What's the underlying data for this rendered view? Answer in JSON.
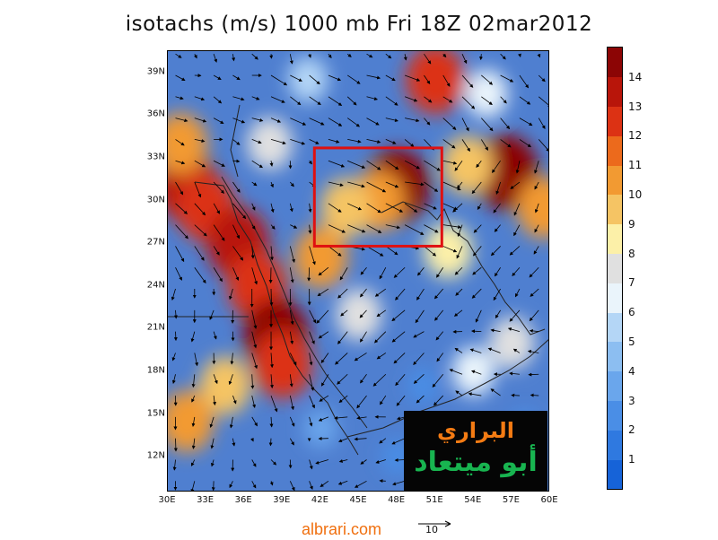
{
  "title": "isotachs (m/s) 1000 mb Fri 18Z 02mar2012",
  "footer": {
    "url": "albrari.com",
    "reference_vector_label": "10"
  },
  "logo": {
    "line1": "البراري",
    "line2": "أبو ميتعاد"
  },
  "map": {
    "lon_range": [
      30,
      60
    ],
    "lat_range": [
      9.5,
      40.5
    ],
    "x_ticks": [
      "30E",
      "33E",
      "36E",
      "39E",
      "42E",
      "45E",
      "48E",
      "51E",
      "54E",
      "57E",
      "60E"
    ],
    "y_ticks": [
      "12N",
      "15N",
      "18N",
      "21N",
      "24N",
      "27N",
      "30N",
      "33N",
      "36N",
      "39N"
    ],
    "background_color": "#4f7fd0",
    "highlight_box": {
      "lon": [
        41.5,
        51.5
      ],
      "lat": [
        26.8,
        33.7
      ],
      "color": "#e01010"
    },
    "wind_speed_blobs": [
      {
        "lon": 31.5,
        "lat": 31.0,
        "speed": 13
      },
      {
        "lon": 33.0,
        "lat": 29.5,
        "speed": 12
      },
      {
        "lon": 31.0,
        "lat": 34.0,
        "speed": 10
      },
      {
        "lon": 35.5,
        "lat": 27.0,
        "speed": 13
      },
      {
        "lon": 37.0,
        "lat": 24.0,
        "speed": 12
      },
      {
        "lon": 38.5,
        "lat": 20.5,
        "speed": 14
      },
      {
        "lon": 39.0,
        "lat": 18.5,
        "speed": 12
      },
      {
        "lon": 48.0,
        "lat": 31.0,
        "speed": 14
      },
      {
        "lon": 46.5,
        "lat": 30.0,
        "speed": 10
      },
      {
        "lon": 44.0,
        "lat": 29.5,
        "speed": 9
      },
      {
        "lon": 42.0,
        "lat": 26.0,
        "speed": 10
      },
      {
        "lon": 51.0,
        "lat": 38.5,
        "speed": 12
      },
      {
        "lon": 56.5,
        "lat": 32.0,
        "speed": 14
      },
      {
        "lon": 59.5,
        "lat": 29.5,
        "speed": 10
      },
      {
        "lon": 53.5,
        "lat": 32.5,
        "speed": 9
      },
      {
        "lon": 34.5,
        "lat": 17.0,
        "speed": 9
      },
      {
        "lon": 31.5,
        "lat": 14.5,
        "speed": 10
      },
      {
        "lon": 52.0,
        "lat": 26.5,
        "speed": 8
      },
      {
        "lon": 57.0,
        "lat": 20.0,
        "speed": 7
      },
      {
        "lon": 45.0,
        "lat": 22.0,
        "speed": 7
      },
      {
        "lon": 54.0,
        "lat": 18.0,
        "speed": 6
      },
      {
        "lon": 38.0,
        "lat": 34.0,
        "speed": 7
      },
      {
        "lon": 41.0,
        "lat": 38.5,
        "speed": 5
      },
      {
        "lon": 55.0,
        "lat": 37.5,
        "speed": 6
      },
      {
        "lon": 48.0,
        "lat": 12.0,
        "speed": 2
      },
      {
        "lon": 42.0,
        "lat": 14.0,
        "speed": 3
      },
      {
        "lon": 50.0,
        "lat": 17.0,
        "speed": 2
      },
      {
        "lon": 58.0,
        "lat": 14.0,
        "speed": 2
      }
    ],
    "wind_regions": [
      {
        "lon": [
          30,
          38
        ],
        "lat": [
          32,
          40
        ],
        "u": 3,
        "v": -1
      },
      {
        "lon": [
          38,
          50
        ],
        "lat": [
          33,
          40
        ],
        "u": 4,
        "v": -2
      },
      {
        "lon": [
          50,
          60
        ],
        "lat": [
          33,
          40
        ],
        "u": 3,
        "v": -3
      },
      {
        "lon": [
          30,
          36
        ],
        "lat": [
          24,
          32
        ],
        "u": 3,
        "v": -4
      },
      {
        "lon": [
          36,
          42
        ],
        "lat": [
          15,
          28
        ],
        "u": 1,
        "v": -5
      },
      {
        "lon": [
          42,
          52
        ],
        "lat": [
          26,
          33
        ],
        "u": 5,
        "v": -2
      },
      {
        "lon": [
          52,
          60
        ],
        "lat": [
          22,
          33
        ],
        "u": -2,
        "v": -3
      },
      {
        "lon": [
          42,
          52
        ],
        "lat": [
          15,
          26
        ],
        "u": -3,
        "v": -3
      },
      {
        "lon": [
          30,
          36
        ],
        "lat": [
          9,
          24
        ],
        "u": 0,
        "v": -3
      },
      {
        "lon": [
          42,
          60
        ],
        "lat": [
          9,
          15
        ],
        "u": -3,
        "v": -1
      },
      {
        "lon": [
          52,
          60
        ],
        "lat": [
          15,
          22
        ],
        "u": -3,
        "v": 1
      }
    ],
    "arrow_spacing_deg": 1.5
  },
  "colorbar": {
    "labels": [
      "1",
      "2",
      "3",
      "4",
      "5",
      "6",
      "7",
      "8",
      "9",
      "10",
      "11",
      "12",
      "13",
      "14"
    ],
    "colors": [
      "#1663d8",
      "#2f79e0",
      "#4a8ee6",
      "#6aa6ec",
      "#8cbef1",
      "#b4d6f6",
      "#eaf4fb",
      "#e0e0e0",
      "#fcf0a8",
      "#f5c464",
      "#f29a32",
      "#ec6a1c",
      "#dc3214",
      "#b8150a",
      "#8c0505"
    ]
  }
}
